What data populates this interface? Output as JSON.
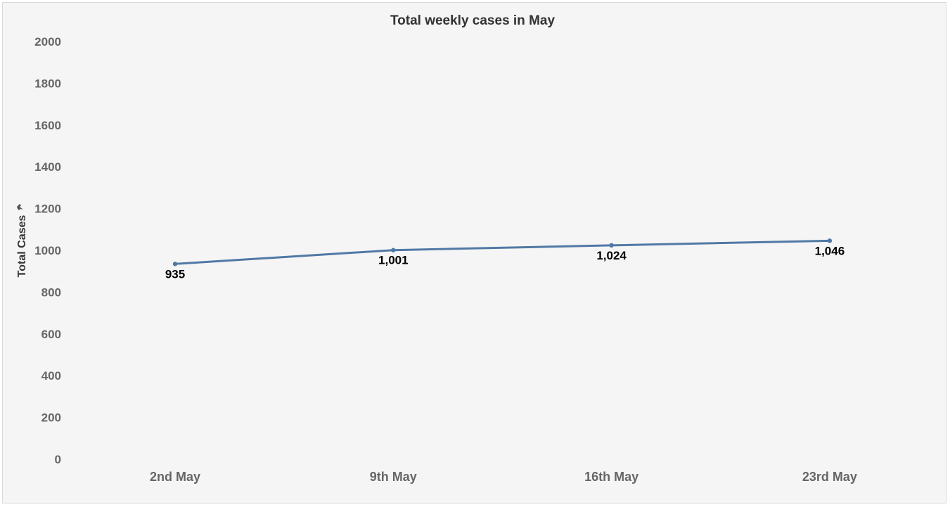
{
  "chart_data": {
    "type": "line",
    "title": "Total weekly cases in May",
    "xlabel": "",
    "ylabel": "Total Cases",
    "ylabel_icon": "pin-icon",
    "categories": [
      "2nd May",
      "9th May",
      "16th May",
      "23rd May"
    ],
    "series": [
      {
        "values": [
          935,
          1001,
          1024,
          1046
        ],
        "labels": [
          "935",
          "1,001",
          "1,024",
          "1,046"
        ]
      }
    ],
    "yticks": [
      0,
      200,
      400,
      600,
      800,
      1000,
      1200,
      1400,
      1600,
      1800,
      2000
    ],
    "ylim": [
      0,
      2000
    ],
    "grid": false,
    "legend": "none",
    "colors": {
      "line": "#5079a5",
      "background": "#f5f5f5"
    }
  }
}
